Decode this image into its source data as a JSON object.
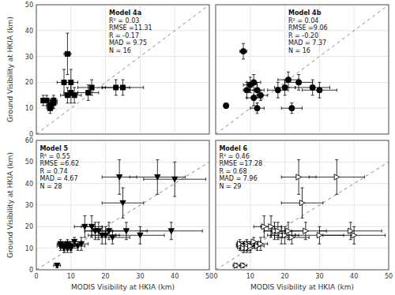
{
  "chart_data": [
    {
      "type": "scatter",
      "title": "Model 4a",
      "annotations": [
        "R² = 0.03",
        "RMSE =11.31",
        "R = -0.17",
        "MAD = 9.75",
        "N = 16"
      ],
      "ylabel": "Ground Visibility at HKIA (km)",
      "marker": "square",
      "color": "black",
      "tick_labels": "y",
      "x": [
        2,
        3,
        4,
        4,
        5,
        5,
        8,
        9,
        9,
        10,
        10,
        11,
        15,
        16,
        23,
        25
      ],
      "values": [
        13,
        13,
        11,
        10,
        13,
        12,
        20,
        31,
        15,
        20,
        16,
        15,
        16,
        18,
        18,
        18
      ],
      "xerr": [
        0.5,
        0.5,
        1,
        1,
        1,
        1,
        2,
        1,
        2,
        2,
        2,
        2,
        3,
        4,
        4,
        6
      ],
      "yerr": [
        2,
        2,
        2,
        2,
        2,
        2,
        5,
        8,
        3,
        5,
        4,
        3,
        3,
        3,
        3,
        3
      ],
      "reference_line": {
        "x": [
          0,
          50
        ],
        "y": [
          0,
          50
        ]
      },
      "xlim": [
        0,
        50
      ],
      "ylim": [
        0,
        50
      ],
      "xticks": [
        0,
        10,
        20,
        30,
        40,
        50
      ],
      "yticks": [
        0,
        10,
        20,
        30,
        40,
        50
      ]
    },
    {
      "type": "scatter",
      "title": "Model 4b",
      "annotations": [
        "R² = 0.04",
        "RMSE =9.06",
        "R = -0.20",
        "MAD = 7.37",
        "N = 16"
      ],
      "marker": "circle",
      "color": "black",
      "tick_labels": false,
      "x": [
        3,
        8,
        9,
        10,
        11,
        11,
        12,
        12,
        13,
        18,
        20,
        21,
        22,
        24,
        28,
        30
      ],
      "values": [
        11,
        32,
        17,
        19,
        20,
        14,
        10,
        17,
        15,
        17,
        18,
        21,
        10,
        20,
        18,
        17
      ],
      "xerr": [
        0.5,
        1,
        1,
        2,
        2,
        2,
        2,
        2,
        2,
        3,
        3,
        3,
        3,
        4,
        5,
        5
      ],
      "yerr": [
        1,
        3,
        3,
        3,
        3,
        3,
        2,
        3,
        2,
        3,
        3,
        3,
        2,
        3,
        3,
        3
      ],
      "reference_line": {
        "x": [
          0,
          50
        ],
        "y": [
          0,
          50
        ]
      },
      "xlim": [
        0,
        50
      ],
      "ylim": [
        0,
        50
      ],
      "xticks": [
        0,
        10,
        20,
        30,
        40,
        50
      ],
      "yticks": [
        0,
        10,
        20,
        30,
        40,
        50
      ]
    },
    {
      "type": "scatter",
      "title": "Model 5",
      "annotations": [
        "R² = 0.55",
        "RMSE =6.62",
        "R = 0.74",
        "MAD = 4.67",
        "N = 28"
      ],
      "xlabel": "MODIS Visibility at HKIA (km)",
      "ylabel": "Ground Visibility at HKIA (km)",
      "marker": "triangle-down",
      "color": "black",
      "x": [
        6,
        7,
        7,
        8,
        8,
        9,
        9,
        9,
        10,
        10,
        11,
        12,
        13,
        14,
        16,
        17,
        18,
        19,
        20,
        21,
        22,
        24,
        25,
        26,
        30,
        35,
        39,
        40
      ],
      "values": [
        2,
        11,
        12,
        11,
        10,
        12,
        11,
        10,
        10,
        11,
        13,
        11,
        12,
        20,
        20,
        18,
        18,
        16,
        16,
        18,
        15,
        43,
        31,
        18,
        16,
        43,
        18,
        42
      ],
      "xerr": [
        1,
        1,
        1,
        1,
        1,
        1,
        2,
        1,
        2,
        2,
        2,
        2,
        2,
        3,
        3,
        3,
        4,
        4,
        4,
        5,
        5,
        5,
        6,
        6,
        7,
        8,
        9,
        9
      ],
      "yerr": [
        1,
        2,
        2,
        2,
        2,
        2,
        2,
        2,
        2,
        2,
        2,
        2,
        3,
        5,
        5,
        4,
        4,
        4,
        4,
        4,
        3,
        8,
        7,
        4,
        4,
        8,
        4,
        8
      ],
      "reference_line": {
        "x": [
          0,
          50
        ],
        "y": [
          0,
          50
        ]
      },
      "xlim": [
        0,
        50
      ],
      "ylim": [
        0,
        60
      ],
      "xticks": [
        0,
        10,
        20,
        30,
        40,
        50
      ],
      "yticks": [
        0,
        10,
        20,
        30,
        40,
        50,
        60
      ]
    },
    {
      "type": "scatter",
      "title": "Model 6",
      "annotations": [
        "R² = 0.46",
        "RMSE =17.28",
        "R = 0.68",
        "MAD = 7.96",
        "N = 29"
      ],
      "xlabel": "MODIS Visibility at HKIA (km)",
      "marker": "triangle-right-open",
      "color": "black",
      "tick_labels": "x",
      "x": [
        6,
        7,
        7,
        8,
        8,
        9,
        9,
        9,
        10,
        10,
        11,
        12,
        13,
        14,
        16,
        17,
        18,
        19,
        20,
        21,
        22,
        24,
        25,
        26,
        30,
        35,
        39,
        40,
        8
      ],
      "values": [
        2,
        11,
        12,
        11,
        10,
        12,
        11,
        10,
        10,
        11,
        13,
        11,
        12,
        20,
        20,
        18,
        18,
        16,
        16,
        18,
        15,
        43,
        31,
        18,
        16,
        43,
        18,
        16,
        2
      ],
      "xerr": [
        1,
        1,
        1,
        1,
        1,
        1,
        2,
        1,
        2,
        2,
        2,
        2,
        2,
        3,
        3,
        3,
        4,
        4,
        4,
        5,
        5,
        5,
        6,
        6,
        7,
        8,
        9,
        9,
        1
      ],
      "yerr": [
        1,
        2,
        2,
        2,
        2,
        2,
        2,
        2,
        2,
        2,
        2,
        2,
        3,
        5,
        5,
        4,
        4,
        4,
        4,
        4,
        3,
        8,
        7,
        4,
        4,
        8,
        4,
        4,
        1
      ],
      "reference_line": {
        "x": [
          0,
          50
        ],
        "y": [
          0,
          50
        ]
      },
      "xlim": [
        0,
        50
      ],
      "ylim": [
        0,
        60
      ],
      "xticks": [
        0,
        10,
        20,
        30,
        40,
        50
      ],
      "yticks": [
        0,
        10,
        20,
        30,
        40,
        50,
        60
      ]
    }
  ]
}
